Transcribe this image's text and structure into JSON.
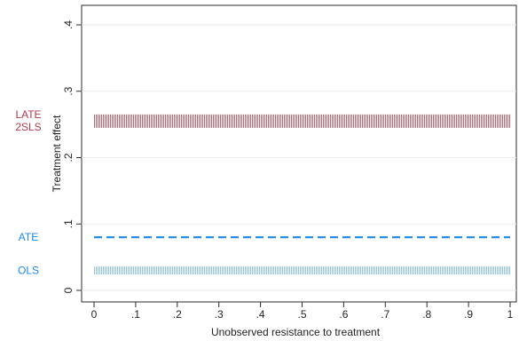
{
  "chart_data": {
    "type": "line",
    "xlabel": "Unobserved resistance to treatment",
    "ylabel": "Treatment effect",
    "xlim": [
      0,
      1
    ],
    "ylim": [
      0,
      0.4
    ],
    "x_ticks": [
      0,
      0.1,
      0.2,
      0.3,
      0.4,
      0.5,
      0.6,
      0.7,
      0.8,
      0.9,
      1
    ],
    "x_tick_labels": [
      "0",
      ".1",
      ".2",
      ".3",
      ".4",
      ".5",
      ".6",
      ".7",
      ".8",
      ".9",
      "1"
    ],
    "y_ticks": [
      0,
      0.1,
      0.2,
      0.3,
      0.4
    ],
    "y_tick_labels": [
      "0",
      ".1",
      ".2",
      ".3",
      ".4"
    ],
    "grid": true,
    "series": [
      {
        "name": "LATE",
        "style": "hatched-band",
        "low": 0.245,
        "high": 0.265,
        "color": "#b23a48"
      },
      {
        "name": "2SLS",
        "style": "hatched-band",
        "low": 0.245,
        "high": 0.265,
        "color": "#b23a48"
      },
      {
        "name": "ATE",
        "style": "dashed-line",
        "value": 0.08,
        "color": "#1e88e5"
      },
      {
        "name": "OLS",
        "style": "hatched-band",
        "low": 0.024,
        "high": 0.036,
        "color": "#66aaf0"
      }
    ],
    "side_labels": [
      {
        "text": "LATE",
        "value": 0.265,
        "color": "#b23a48"
      },
      {
        "text": "2SLS",
        "value": 0.246,
        "color": "#b23a48"
      },
      {
        "text": "ATE",
        "value": 0.08,
        "color": "#1e88e5"
      },
      {
        "text": "OLS",
        "value": 0.03,
        "color": "#1e88e5"
      }
    ]
  }
}
